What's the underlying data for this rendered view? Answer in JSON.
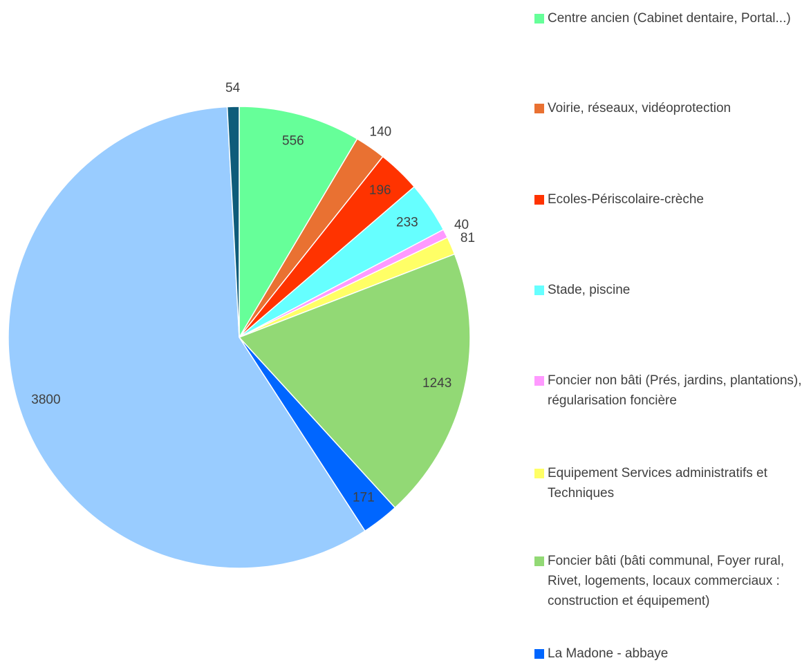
{
  "chart_data": {
    "type": "pie",
    "categories": [
      "Centre ancien (Cabinet dentaire, Portal...)",
      "Voirie, réseaux, vidéoprotection",
      "Ecoles-Périscolaire-crèche",
      "Stade, piscine",
      "Foncier non bâti (Prés, jardins, plantations), régularisation foncière",
      "Equipement Services administratifs et Techniques",
      "Foncier bâti (bâti communal, Foyer rural, Rivet, logements, locaux commerciaux : construction et équipement)",
      "La Madone - abbaye",
      null,
      null
    ],
    "values": [
      556,
      140,
      196,
      233,
      40,
      81,
      1243,
      171,
      3800,
      54
    ],
    "colors": [
      "#66ff99",
      "#e97132",
      "#ff3300",
      "#66ffff",
      "#ff99ff",
      "#ffff66",
      "#92d975",
      "#0066ff",
      "#99ccff",
      "#0e5c7a"
    ],
    "legend": "right"
  }
}
